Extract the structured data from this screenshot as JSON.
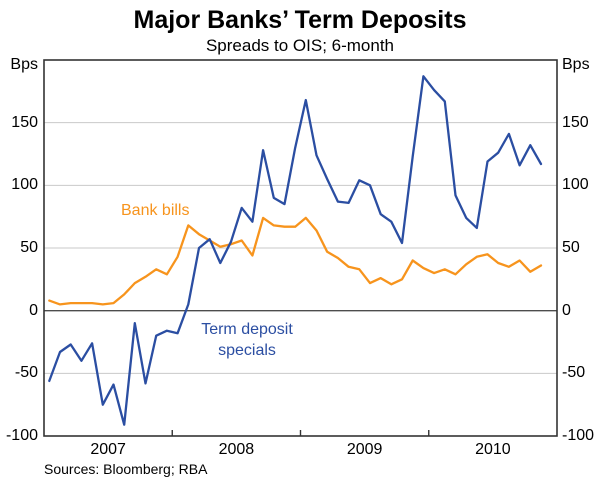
{
  "header": {
    "title": "Major Banks’ Term Deposits",
    "subtitle": "Spreads to OIS; 6-month"
  },
  "axes": {
    "y_unit": "Bps",
    "y_tick_labels": [
      "150",
      "100",
      "50",
      "0",
      "-50",
      "-100"
    ],
    "y_tick_values": [
      150,
      100,
      50,
      0,
      -50,
      -100
    ],
    "x_year_labels": [
      "2007",
      "2008",
      "2009",
      "2010"
    ]
  },
  "series_labels": {
    "bank_bills": "Bank bills",
    "term_deposit_line1": "Term deposit",
    "term_deposit_line2": "specials"
  },
  "footer": {
    "sources": "Sources: Bloomberg; RBA"
  },
  "colors": {
    "bank_bills": "#F7941D",
    "term_deposit_specials": "#2B4EA2",
    "gridline": "#C9C9C9",
    "zero_line": "#4D4D4D",
    "frame": "#333333",
    "text": "#000000"
  },
  "chart_data": {
    "type": "line",
    "title": "Major Banks’ Term Deposits",
    "subtitle": "Spreads to OIS; 6-month",
    "ylabel": "Bps",
    "ylim": [
      -100,
      200
    ],
    "y_gridlines": [
      150,
      100,
      50,
      0,
      -50
    ],
    "y_labeled_ticks": [
      150,
      100,
      50,
      0,
      -50,
      -100
    ],
    "grid": true,
    "legend_position": "inline-labels",
    "x_axis": {
      "start": "2007-01",
      "end": "2010-11",
      "frequency": "monthly",
      "plotted_range_years": [
        "2007-01",
        "2011-01"
      ],
      "year_boundary_ticks": [
        "2008-01",
        "2009-01",
        "2010-01"
      ],
      "year_labels": [
        "2007",
        "2008",
        "2009",
        "2010"
      ]
    },
    "months": [
      "2007-01",
      "2007-02",
      "2007-03",
      "2007-04",
      "2007-05",
      "2007-06",
      "2007-07",
      "2007-08",
      "2007-09",
      "2007-10",
      "2007-11",
      "2007-12",
      "2008-01",
      "2008-02",
      "2008-03",
      "2008-04",
      "2008-05",
      "2008-06",
      "2008-07",
      "2008-08",
      "2008-09",
      "2008-10",
      "2008-11",
      "2008-12",
      "2009-01",
      "2009-02",
      "2009-03",
      "2009-04",
      "2009-05",
      "2009-06",
      "2009-07",
      "2009-08",
      "2009-09",
      "2009-10",
      "2009-11",
      "2009-12",
      "2010-01",
      "2010-02",
      "2010-03",
      "2010-04",
      "2010-05",
      "2010-06",
      "2010-07",
      "2010-08",
      "2010-09",
      "2010-10",
      "2010-11"
    ],
    "series": [
      {
        "name": "Bank bills",
        "color": "#F7941D",
        "values": [
          8,
          5,
          6,
          6,
          6,
          5,
          6,
          13,
          22,
          27,
          33,
          29,
          43,
          68,
          61,
          56,
          51,
          53,
          56,
          44,
          74,
          68,
          67,
          67,
          74,
          64,
          47,
          42,
          35,
          33,
          22,
          26,
          21,
          25,
          40,
          34,
          30,
          33,
          29,
          37,
          43,
          45,
          38,
          35,
          40,
          31,
          36
        ]
      },
      {
        "name": "Term deposit specials",
        "color": "#2B4EA2",
        "values": [
          -56,
          -33,
          -27,
          -40,
          -26,
          -75,
          -59,
          -91,
          -10,
          -58,
          -20,
          -16,
          -18,
          5,
          50,
          57,
          38,
          55,
          82,
          71,
          128,
          90,
          85,
          130,
          168,
          124,
          105,
          87,
          86,
          104,
          100,
          77,
          71,
          54,
          123,
          187,
          176,
          167,
          92,
          74,
          66,
          119,
          126,
          141,
          116,
          132,
          117
        ]
      }
    ],
    "source_note": "Sources: Bloomberg; RBA"
  }
}
